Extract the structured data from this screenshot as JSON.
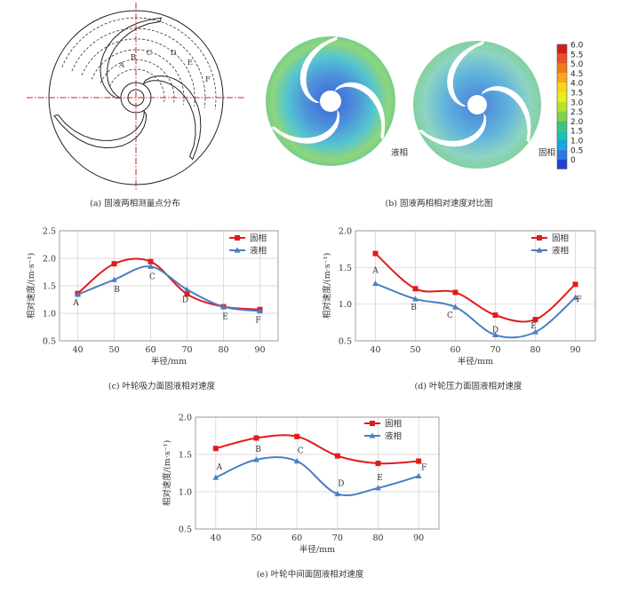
{
  "figure_a": {
    "caption": "(a) 固液两相测量点分布",
    "points": [
      "A",
      "B",
      "C",
      "D",
      "E",
      "F"
    ]
  },
  "figure_b": {
    "caption": "(b) 固液两相相对速度对比图",
    "label_left": "液相",
    "label_right": "固相",
    "colorbar_ticks": [
      "6.0",
      "5.5",
      "5.0",
      "4.5",
      "4.0",
      "3.5",
      "3.0",
      "2.5",
      "2.0",
      "1.5",
      "1.0",
      "0.5",
      "0"
    ],
    "colorbar_colors": [
      "#d7191c",
      "#e8502a",
      "#f07b1e",
      "#f8a61c",
      "#f6d51b",
      "#e9ee1a",
      "#b7e42a",
      "#7fd24a",
      "#3dc47a",
      "#1bc0b6",
      "#16a8dc",
      "#2b79e6",
      "#1f3fd6"
    ]
  },
  "colors": {
    "solid": "#e31a1c",
    "liquid": "#4a7fc1"
  },
  "chart_data": [
    {
      "type": "line",
      "caption": "(c) 叶轮吸力面固液相对速度",
      "xlabel": "半径/mm",
      "ylabel": "相对速度/(m·s⁻¹)",
      "x": [
        40,
        50,
        60,
        70,
        80,
        90
      ],
      "ylim": [
        0.5,
        2.5
      ],
      "yticks": [
        "0.5",
        "1.0",
        "1.5",
        "2.0",
        "2.5"
      ],
      "grid": true,
      "legend": "top-right",
      "point_labels": [
        "A",
        "B",
        "C",
        "D",
        "E",
        "F"
      ],
      "series": [
        {
          "name": "固相",
          "values": [
            1.36,
            1.9,
            1.94,
            1.35,
            1.12,
            1.07
          ]
        },
        {
          "name": "液相",
          "values": [
            1.34,
            1.61,
            1.85,
            1.43,
            1.12,
            1.04
          ]
        }
      ]
    },
    {
      "type": "line",
      "caption": "(d) 叶轮压力面固液相对速度",
      "xlabel": "半径/mm",
      "ylabel": "相对速度/(m·s⁻¹)",
      "x": [
        40,
        50,
        60,
        70,
        80,
        90
      ],
      "ylim": [
        0.5,
        2.0
      ],
      "yticks": [
        "0.5",
        "1.0",
        "1.5",
        "2.0"
      ],
      "grid": true,
      "legend": "top-right",
      "point_labels": [
        "A",
        "B",
        "C",
        "D",
        "E",
        "F"
      ],
      "series": [
        {
          "name": "固相",
          "values": [
            1.69,
            1.21,
            1.16,
            0.85,
            0.79,
            1.27
          ]
        },
        {
          "name": "液相",
          "values": [
            1.28,
            1.07,
            0.96,
            0.58,
            0.62,
            1.09
          ]
        }
      ]
    },
    {
      "type": "line",
      "caption": "(e) 叶轮中间面固液相对速度",
      "xlabel": "半径/mm",
      "ylabel": "相对速度/(m·s⁻¹)",
      "x": [
        40,
        50,
        60,
        70,
        80,
        90
      ],
      "ylim": [
        0.5,
        2.0
      ],
      "yticks": [
        "0.5",
        "1.0",
        "1.5",
        "2.0"
      ],
      "grid": true,
      "legend": "top-right",
      "point_labels": [
        "A",
        "B",
        "C",
        "D",
        "E",
        "F"
      ],
      "series": [
        {
          "name": "固相",
          "values": [
            1.58,
            1.72,
            1.74,
            1.48,
            1.38,
            1.41
          ]
        },
        {
          "name": "液相",
          "values": [
            1.19,
            1.43,
            1.41,
            0.97,
            1.05,
            1.21
          ]
        }
      ]
    }
  ]
}
